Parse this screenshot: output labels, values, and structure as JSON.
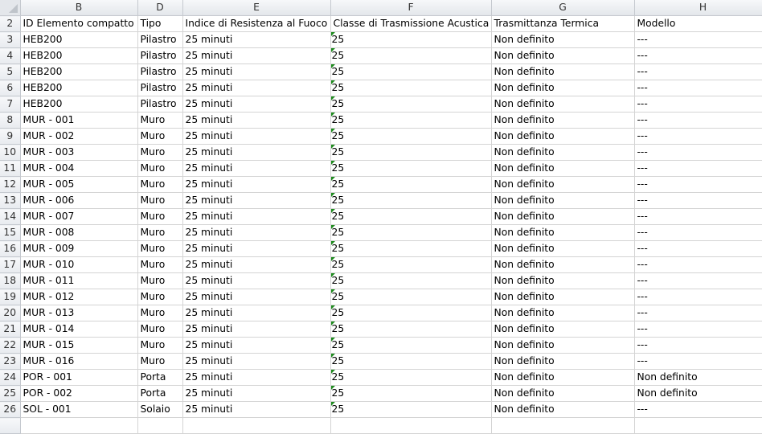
{
  "columns": [
    "B",
    "D",
    "E",
    "F",
    "G",
    "H"
  ],
  "rows": [
    {
      "num": "2",
      "cells": [
        "ID Elemento compatto",
        "Tipo",
        "Indice di Resistenza al Fuoco",
        "Classe di Trasmissione Acustica",
        "Trasmittanza Termica",
        "Modello"
      ]
    },
    {
      "num": "3",
      "cells": [
        "HEB200",
        "Pilastro",
        "25 minuti",
        "25",
        "Non definito",
        "---"
      ]
    },
    {
      "num": "4",
      "cells": [
        "HEB200",
        "Pilastro",
        "25 minuti",
        "25",
        "Non definito",
        "---"
      ]
    },
    {
      "num": "5",
      "cells": [
        "HEB200",
        "Pilastro",
        "25 minuti",
        "25",
        "Non definito",
        "---"
      ]
    },
    {
      "num": "6",
      "cells": [
        "HEB200",
        "Pilastro",
        "25 minuti",
        "25",
        "Non definito",
        "---"
      ]
    },
    {
      "num": "7",
      "cells": [
        "HEB200",
        "Pilastro",
        "25 minuti",
        "25",
        "Non definito",
        "---"
      ]
    },
    {
      "num": "8",
      "cells": [
        "MUR - 001",
        "Muro",
        "25 minuti",
        "25",
        "Non definito",
        "---"
      ]
    },
    {
      "num": "9",
      "cells": [
        "MUR - 002",
        "Muro",
        "25 minuti",
        "25",
        "Non definito",
        "---"
      ]
    },
    {
      "num": "10",
      "cells": [
        "MUR - 003",
        "Muro",
        "25 minuti",
        "25",
        "Non definito",
        "---"
      ]
    },
    {
      "num": "11",
      "cells": [
        "MUR - 004",
        "Muro",
        "25 minuti",
        "25",
        "Non definito",
        "---"
      ]
    },
    {
      "num": "12",
      "cells": [
        "MUR - 005",
        "Muro",
        "25 minuti",
        "25",
        "Non definito",
        "---"
      ]
    },
    {
      "num": "13",
      "cells": [
        "MUR - 006",
        "Muro",
        "25 minuti",
        "25",
        "Non definito",
        "---"
      ]
    },
    {
      "num": "14",
      "cells": [
        "MUR - 007",
        "Muro",
        "25 minuti",
        "25",
        "Non definito",
        "---"
      ]
    },
    {
      "num": "15",
      "cells": [
        "MUR - 008",
        "Muro",
        "25 minuti",
        "25",
        "Non definito",
        "---"
      ]
    },
    {
      "num": "16",
      "cells": [
        "MUR - 009",
        "Muro",
        "25 minuti",
        "25",
        "Non definito",
        "---"
      ]
    },
    {
      "num": "17",
      "cells": [
        "MUR - 010",
        "Muro",
        "25 minuti",
        "25",
        "Non definito",
        "---"
      ]
    },
    {
      "num": "18",
      "cells": [
        "MUR - 011",
        "Muro",
        "25 minuti",
        "25",
        "Non definito",
        "---"
      ]
    },
    {
      "num": "19",
      "cells": [
        "MUR - 012",
        "Muro",
        "25 minuti",
        "25",
        "Non definito",
        "---"
      ]
    },
    {
      "num": "20",
      "cells": [
        "MUR - 013",
        "Muro",
        "25 minuti",
        "25",
        "Non definito",
        "---"
      ]
    },
    {
      "num": "21",
      "cells": [
        "MUR - 014",
        "Muro",
        "25 minuti",
        "25",
        "Non definito",
        "---"
      ]
    },
    {
      "num": "22",
      "cells": [
        "MUR - 015",
        "Muro",
        "25 minuti",
        "25",
        "Non definito",
        "---"
      ]
    },
    {
      "num": "23",
      "cells": [
        "MUR - 016",
        "Muro",
        "25 minuti",
        "25",
        "Non definito",
        "---"
      ]
    },
    {
      "num": "24",
      "cells": [
        "POR - 001",
        "Porta",
        "25 minuti",
        "25",
        "Non definito",
        "Non definito"
      ]
    },
    {
      "num": "25",
      "cells": [
        "POR - 002",
        "Porta",
        "25 minuti",
        "25",
        "Non definito",
        "Non definito"
      ]
    },
    {
      "num": "26",
      "cells": [
        "SOL - 001",
        "Solaio",
        "25 minuti",
        "25",
        "Non definito",
        "---"
      ]
    },
    {
      "num": "",
      "cells": [
        "",
        "",
        "",
        "",
        "",
        ""
      ]
    }
  ],
  "number_stored_as_text_flag_color": "#1e8a1e"
}
